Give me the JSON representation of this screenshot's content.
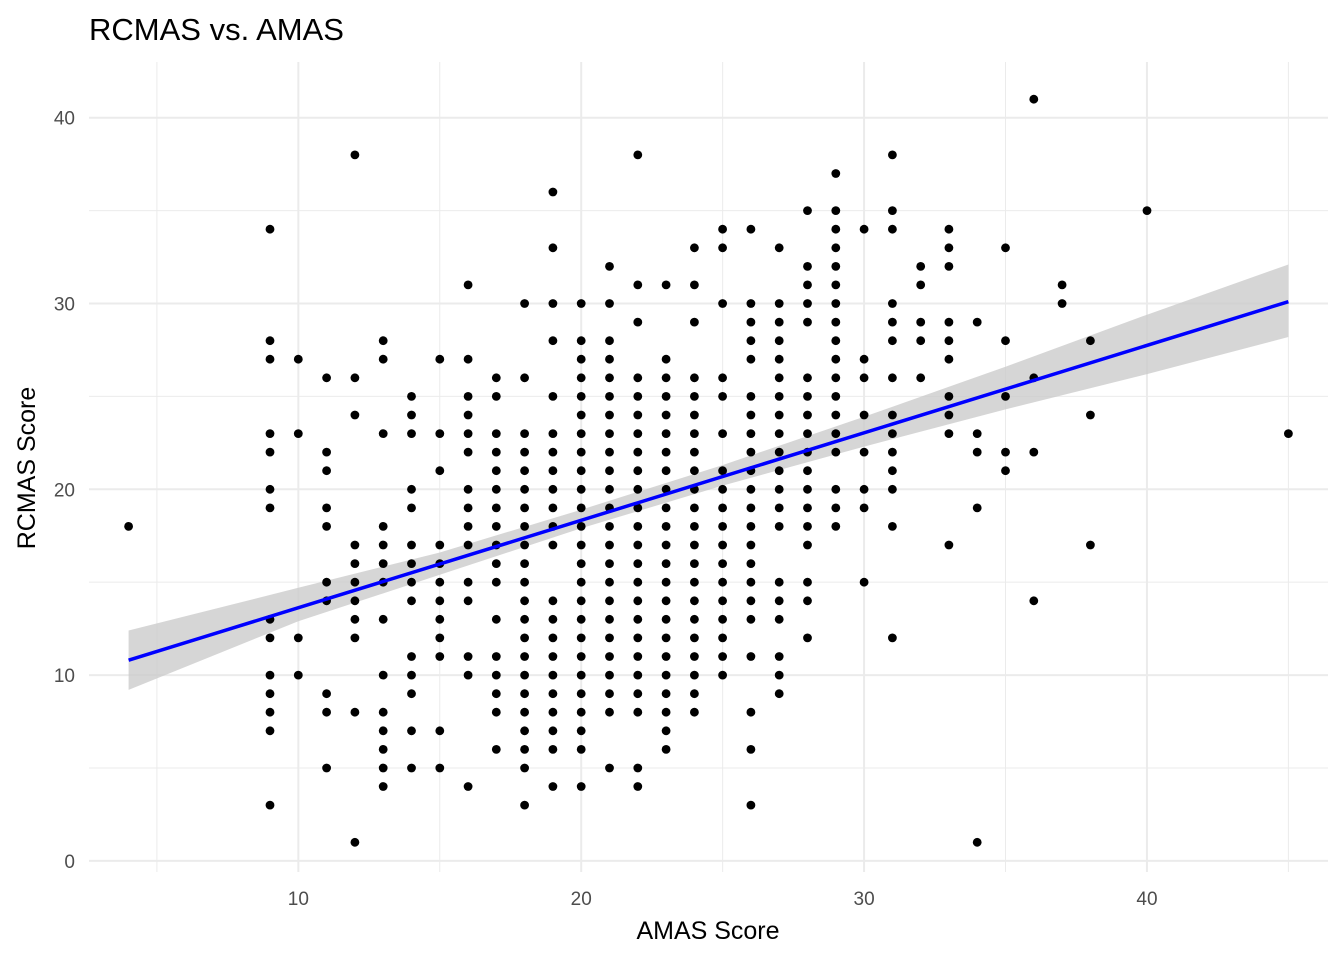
{
  "chart_data": {
    "type": "scatter",
    "title": "RCMAS vs. AMAS",
    "xlabel": "AMAS Score",
    "ylabel": "RCMAS Score",
    "xlim": [
      2.6,
      46.4
    ],
    "ylim": [
      -0.6,
      43.0
    ],
    "xticks": [
      10,
      20,
      30,
      40
    ],
    "yticks": [
      0,
      10,
      20,
      30,
      40
    ],
    "grid": true,
    "legend": "none",
    "colors": {
      "points": "#000000",
      "fit_line": "#0000ff",
      "confidence_band": "#cccccc",
      "grid": "#ebebeb"
    },
    "fit_line": {
      "x": [
        4,
        45
      ],
      "y": [
        10.8,
        30.1
      ]
    },
    "confidence_band": [
      {
        "x": 4,
        "lower": 9.2,
        "upper": 12.4
      },
      {
        "x": 10,
        "lower": 12.9,
        "upper": 14.7
      },
      {
        "x": 15,
        "lower": 15.4,
        "upper": 16.6
      },
      {
        "x": 20,
        "lower": 17.9,
        "upper": 18.9
      },
      {
        "x": 25,
        "lower": 20.2,
        "upper": 21.3
      },
      {
        "x": 30,
        "lower": 22.3,
        "upper": 23.9
      },
      {
        "x": 35,
        "lower": 24.3,
        "upper": 26.6
      },
      {
        "x": 40,
        "lower": 26.2,
        "upper": 29.4
      },
      {
        "x": 45,
        "lower": 28.2,
        "upper": 32.1
      }
    ],
    "points": [
      [
        4,
        18
      ],
      [
        9,
        34
      ],
      [
        9,
        28
      ],
      [
        9,
        27
      ],
      [
        9,
        23
      ],
      [
        9,
        22
      ],
      [
        9,
        20
      ],
      [
        9,
        19
      ],
      [
        9,
        13
      ],
      [
        9,
        12
      ],
      [
        9,
        10
      ],
      [
        9,
        9
      ],
      [
        9,
        8
      ],
      [
        9,
        7
      ],
      [
        9,
        3
      ],
      [
        10,
        27
      ],
      [
        10,
        23
      ],
      [
        10,
        12
      ],
      [
        10,
        10
      ],
      [
        11,
        26
      ],
      [
        11,
        22
      ],
      [
        11,
        21
      ],
      [
        11,
        19
      ],
      [
        11,
        18
      ],
      [
        11,
        15
      ],
      [
        11,
        14
      ],
      [
        11,
        9
      ],
      [
        11,
        8
      ],
      [
        11,
        5
      ],
      [
        12,
        38
      ],
      [
        12,
        26
      ],
      [
        12,
        24
      ],
      [
        12,
        17
      ],
      [
        12,
        16
      ],
      [
        12,
        15
      ],
      [
        12,
        14
      ],
      [
        12,
        13
      ],
      [
        12,
        12
      ],
      [
        12,
        8
      ],
      [
        12,
        1
      ],
      [
        13,
        28
      ],
      [
        13,
        27
      ],
      [
        13,
        23
      ],
      [
        13,
        18
      ],
      [
        13,
        17
      ],
      [
        13,
        16
      ],
      [
        13,
        15
      ],
      [
        13,
        13
      ],
      [
        13,
        10
      ],
      [
        13,
        8
      ],
      [
        13,
        7
      ],
      [
        13,
        6
      ],
      [
        13,
        5
      ],
      [
        13,
        4
      ],
      [
        14,
        25
      ],
      [
        14,
        24
      ],
      [
        14,
        23
      ],
      [
        14,
        20
      ],
      [
        14,
        19
      ],
      [
        14,
        17
      ],
      [
        14,
        16
      ],
      [
        14,
        15
      ],
      [
        14,
        14
      ],
      [
        14,
        11
      ],
      [
        14,
        10
      ],
      [
        14,
        9
      ],
      [
        14,
        7
      ],
      [
        14,
        5
      ],
      [
        15,
        27
      ],
      [
        15,
        23
      ],
      [
        15,
        21
      ],
      [
        15,
        17
      ],
      [
        15,
        16
      ],
      [
        15,
        15
      ],
      [
        15,
        14
      ],
      [
        15,
        13
      ],
      [
        15,
        12
      ],
      [
        15,
        11
      ],
      [
        15,
        7
      ],
      [
        15,
        5
      ],
      [
        16,
        31
      ],
      [
        16,
        27
      ],
      [
        16,
        25
      ],
      [
        16,
        24
      ],
      [
        16,
        23
      ],
      [
        16,
        22
      ],
      [
        16,
        20
      ],
      [
        16,
        19
      ],
      [
        16,
        18
      ],
      [
        16,
        17
      ],
      [
        16,
        15
      ],
      [
        16,
        14
      ],
      [
        16,
        11
      ],
      [
        16,
        10
      ],
      [
        16,
        4
      ],
      [
        17,
        26
      ],
      [
        17,
        25
      ],
      [
        17,
        23
      ],
      [
        17,
        22
      ],
      [
        17,
        21
      ],
      [
        17,
        20
      ],
      [
        17,
        19
      ],
      [
        17,
        18
      ],
      [
        17,
        17
      ],
      [
        17,
        16
      ],
      [
        17,
        15
      ],
      [
        17,
        13
      ],
      [
        17,
        11
      ],
      [
        17,
        10
      ],
      [
        17,
        9
      ],
      [
        17,
        8
      ],
      [
        17,
        6
      ],
      [
        18,
        30
      ],
      [
        18,
        26
      ],
      [
        18,
        23
      ],
      [
        18,
        22
      ],
      [
        18,
        21
      ],
      [
        18,
        20
      ],
      [
        18,
        19
      ],
      [
        18,
        18
      ],
      [
        18,
        17
      ],
      [
        18,
        16
      ],
      [
        18,
        15
      ],
      [
        18,
        14
      ],
      [
        18,
        13
      ],
      [
        18,
        12
      ],
      [
        18,
        11
      ],
      [
        18,
        10
      ],
      [
        18,
        9
      ],
      [
        18,
        8
      ],
      [
        18,
        7
      ],
      [
        18,
        6
      ],
      [
        18,
        5
      ],
      [
        18,
        3
      ],
      [
        19,
        36
      ],
      [
        19,
        33
      ],
      [
        19,
        30
      ],
      [
        19,
        28
      ],
      [
        19,
        25
      ],
      [
        19,
        23
      ],
      [
        19,
        22
      ],
      [
        19,
        21
      ],
      [
        19,
        20
      ],
      [
        19,
        19
      ],
      [
        19,
        18
      ],
      [
        19,
        17
      ],
      [
        19,
        14
      ],
      [
        19,
        13
      ],
      [
        19,
        12
      ],
      [
        19,
        11
      ],
      [
        19,
        10
      ],
      [
        19,
        9
      ],
      [
        19,
        8
      ],
      [
        19,
        7
      ],
      [
        19,
        6
      ],
      [
        19,
        4
      ],
      [
        20,
        30
      ],
      [
        20,
        28
      ],
      [
        20,
        27
      ],
      [
        20,
        26
      ],
      [
        20,
        25
      ],
      [
        20,
        24
      ],
      [
        20,
        23
      ],
      [
        20,
        22
      ],
      [
        20,
        21
      ],
      [
        20,
        20
      ],
      [
        20,
        19
      ],
      [
        20,
        18
      ],
      [
        20,
        17
      ],
      [
        20,
        16
      ],
      [
        20,
        15
      ],
      [
        20,
        14
      ],
      [
        20,
        13
      ],
      [
        20,
        12
      ],
      [
        20,
        11
      ],
      [
        20,
        10
      ],
      [
        20,
        9
      ],
      [
        20,
        8
      ],
      [
        20,
        7
      ],
      [
        20,
        6
      ],
      [
        20,
        4
      ],
      [
        21,
        32
      ],
      [
        21,
        30
      ],
      [
        21,
        28
      ],
      [
        21,
        27
      ],
      [
        21,
        26
      ],
      [
        21,
        25
      ],
      [
        21,
        24
      ],
      [
        21,
        23
      ],
      [
        21,
        22
      ],
      [
        21,
        21
      ],
      [
        21,
        20
      ],
      [
        21,
        19
      ],
      [
        21,
        18
      ],
      [
        21,
        17
      ],
      [
        21,
        16
      ],
      [
        21,
        15
      ],
      [
        21,
        14
      ],
      [
        21,
        13
      ],
      [
        21,
        12
      ],
      [
        21,
        11
      ],
      [
        21,
        10
      ],
      [
        21,
        9
      ],
      [
        21,
        8
      ],
      [
        21,
        5
      ],
      [
        22,
        38
      ],
      [
        22,
        31
      ],
      [
        22,
        29
      ],
      [
        22,
        26
      ],
      [
        22,
        25
      ],
      [
        22,
        24
      ],
      [
        22,
        23
      ],
      [
        22,
        22
      ],
      [
        22,
        21
      ],
      [
        22,
        20
      ],
      [
        22,
        19
      ],
      [
        22,
        18
      ],
      [
        22,
        17
      ],
      [
        22,
        16
      ],
      [
        22,
        15
      ],
      [
        22,
        14
      ],
      [
        22,
        13
      ],
      [
        22,
        12
      ],
      [
        22,
        11
      ],
      [
        22,
        10
      ],
      [
        22,
        9
      ],
      [
        22,
        8
      ],
      [
        22,
        5
      ],
      [
        22,
        4
      ],
      [
        23,
        31
      ],
      [
        23,
        27
      ],
      [
        23,
        26
      ],
      [
        23,
        25
      ],
      [
        23,
        24
      ],
      [
        23,
        23
      ],
      [
        23,
        22
      ],
      [
        23,
        21
      ],
      [
        23,
        20
      ],
      [
        23,
        19
      ],
      [
        23,
        18
      ],
      [
        23,
        17
      ],
      [
        23,
        16
      ],
      [
        23,
        15
      ],
      [
        23,
        14
      ],
      [
        23,
        13
      ],
      [
        23,
        12
      ],
      [
        23,
        11
      ],
      [
        23,
        10
      ],
      [
        23,
        9
      ],
      [
        23,
        8
      ],
      [
        23,
        7
      ],
      [
        23,
        6
      ],
      [
        24,
        33
      ],
      [
        24,
        31
      ],
      [
        24,
        29
      ],
      [
        24,
        26
      ],
      [
        24,
        25
      ],
      [
        24,
        24
      ],
      [
        24,
        23
      ],
      [
        24,
        22
      ],
      [
        24,
        21
      ],
      [
        24,
        20
      ],
      [
        24,
        19
      ],
      [
        24,
        18
      ],
      [
        24,
        17
      ],
      [
        24,
        16
      ],
      [
        24,
        15
      ],
      [
        24,
        14
      ],
      [
        24,
        13
      ],
      [
        24,
        12
      ],
      [
        24,
        11
      ],
      [
        24,
        10
      ],
      [
        24,
        9
      ],
      [
        24,
        8
      ],
      [
        25,
        34
      ],
      [
        25,
        33
      ],
      [
        25,
        30
      ],
      [
        25,
        26
      ],
      [
        25,
        25
      ],
      [
        25,
        23
      ],
      [
        25,
        21
      ],
      [
        25,
        20
      ],
      [
        25,
        19
      ],
      [
        25,
        18
      ],
      [
        25,
        17
      ],
      [
        25,
        16
      ],
      [
        25,
        15
      ],
      [
        25,
        14
      ],
      [
        25,
        13
      ],
      [
        25,
        12
      ],
      [
        25,
        11
      ],
      [
        25,
        10
      ],
      [
        26,
        34
      ],
      [
        26,
        30
      ],
      [
        26,
        29
      ],
      [
        26,
        28
      ],
      [
        26,
        27
      ],
      [
        26,
        25
      ],
      [
        26,
        24
      ],
      [
        26,
        23
      ],
      [
        26,
        22
      ],
      [
        26,
        21
      ],
      [
        26,
        20
      ],
      [
        26,
        19
      ],
      [
        26,
        18
      ],
      [
        26,
        17
      ],
      [
        26,
        16
      ],
      [
        26,
        15
      ],
      [
        26,
        14
      ],
      [
        26,
        13
      ],
      [
        26,
        11
      ],
      [
        26,
        8
      ],
      [
        26,
        6
      ],
      [
        26,
        3
      ],
      [
        27,
        33
      ],
      [
        27,
        30
      ],
      [
        27,
        29
      ],
      [
        27,
        28
      ],
      [
        27,
        27
      ],
      [
        27,
        26
      ],
      [
        27,
        25
      ],
      [
        27,
        24
      ],
      [
        27,
        23
      ],
      [
        27,
        22
      ],
      [
        27,
        21
      ],
      [
        27,
        20
      ],
      [
        27,
        19
      ],
      [
        27,
        18
      ],
      [
        27,
        15
      ],
      [
        27,
        14
      ],
      [
        27,
        13
      ],
      [
        27,
        11
      ],
      [
        27,
        10
      ],
      [
        27,
        9
      ],
      [
        28,
        35
      ],
      [
        28,
        32
      ],
      [
        28,
        31
      ],
      [
        28,
        30
      ],
      [
        28,
        29
      ],
      [
        28,
        26
      ],
      [
        28,
        25
      ],
      [
        28,
        24
      ],
      [
        28,
        23
      ],
      [
        28,
        22
      ],
      [
        28,
        21
      ],
      [
        28,
        20
      ],
      [
        28,
        19
      ],
      [
        28,
        18
      ],
      [
        28,
        17
      ],
      [
        28,
        15
      ],
      [
        28,
        14
      ],
      [
        28,
        12
      ],
      [
        29,
        37
      ],
      [
        29,
        35
      ],
      [
        29,
        34
      ],
      [
        29,
        33
      ],
      [
        29,
        32
      ],
      [
        29,
        31
      ],
      [
        29,
        30
      ],
      [
        29,
        29
      ],
      [
        29,
        28
      ],
      [
        29,
        27
      ],
      [
        29,
        26
      ],
      [
        29,
        25
      ],
      [
        29,
        24
      ],
      [
        29,
        23
      ],
      [
        29,
        22
      ],
      [
        29,
        20
      ],
      [
        29,
        19
      ],
      [
        29,
        18
      ],
      [
        30,
        34
      ],
      [
        30,
        27
      ],
      [
        30,
        26
      ],
      [
        30,
        24
      ],
      [
        30,
        22
      ],
      [
        30,
        20
      ],
      [
        30,
        19
      ],
      [
        30,
        15
      ],
      [
        31,
        38
      ],
      [
        31,
        35
      ],
      [
        31,
        34
      ],
      [
        31,
        30
      ],
      [
        31,
        29
      ],
      [
        31,
        28
      ],
      [
        31,
        26
      ],
      [
        31,
        24
      ],
      [
        31,
        23
      ],
      [
        31,
        22
      ],
      [
        31,
        21
      ],
      [
        31,
        20
      ],
      [
        31,
        18
      ],
      [
        31,
        12
      ],
      [
        32,
        32
      ],
      [
        32,
        31
      ],
      [
        32,
        29
      ],
      [
        32,
        28
      ],
      [
        32,
        26
      ],
      [
        33,
        34
      ],
      [
        33,
        33
      ],
      [
        33,
        32
      ],
      [
        33,
        29
      ],
      [
        33,
        28
      ],
      [
        33,
        27
      ],
      [
        33,
        25
      ],
      [
        33,
        24
      ],
      [
        33,
        23
      ],
      [
        33,
        17
      ],
      [
        34,
        29
      ],
      [
        34,
        23
      ],
      [
        34,
        22
      ],
      [
        34,
        19
      ],
      [
        34,
        1
      ],
      [
        35,
        33
      ],
      [
        35,
        28
      ],
      [
        35,
        25
      ],
      [
        35,
        22
      ],
      [
        35,
        21
      ],
      [
        36,
        41
      ],
      [
        36,
        26
      ],
      [
        36,
        22
      ],
      [
        36,
        14
      ],
      [
        37,
        31
      ],
      [
        37,
        30
      ],
      [
        38,
        28
      ],
      [
        38,
        24
      ],
      [
        38,
        17
      ],
      [
        40,
        35
      ],
      [
        45,
        23
      ]
    ]
  }
}
